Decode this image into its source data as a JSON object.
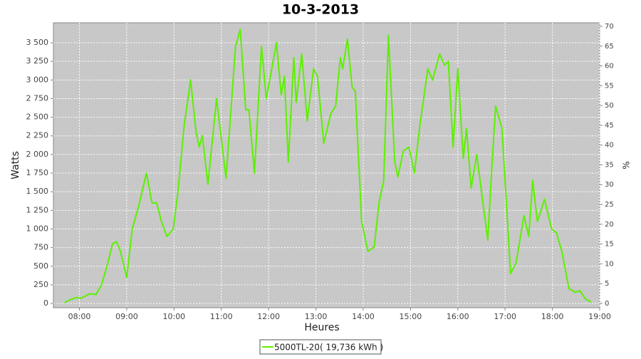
{
  "chart_data": {
    "type": "line",
    "title": "10-3-2013",
    "xlabel": "Heures",
    "ylabel": "Watts",
    "y2label": "%",
    "x": [
      "07:41",
      "07:46",
      "07:56",
      "08:02",
      "08:13",
      "08:21",
      "08:28",
      "08:35",
      "08:42",
      "08:47",
      "08:52",
      "09:00",
      "09:07",
      "09:15",
      "09:25",
      "09:32",
      "09:38",
      "09:44",
      "09:51",
      "09:59",
      "10:05",
      "10:13",
      "10:21",
      "10:28",
      "10:32",
      "10:36",
      "10:43",
      "10:54",
      "11:06",
      "11:18",
      "11:24",
      "11:31",
      "11:35",
      "11:42",
      "11:51",
      "11:57",
      "12:04",
      "12:10",
      "12:16",
      "12:20",
      "12:25",
      "12:32",
      "12:35",
      "12:42",
      "12:49",
      "12:57",
      "13:02",
      "13:10",
      "13:19",
      "13:25",
      "13:31",
      "13:34",
      "13:40",
      "13:46",
      "13:50",
      "13:58",
      "14:06",
      "14:14",
      "14:20",
      "14:26",
      "14:32",
      "14:40",
      "14:44",
      "14:51",
      "14:58",
      "15:05",
      "15:12",
      "15:22",
      "15:28",
      "15:37",
      "15:43",
      "15:48",
      "15:54",
      "16:00",
      "16:07",
      "16:11",
      "16:17",
      "16:24",
      "16:38",
      "16:43",
      "16:48",
      "16:56",
      "17:07",
      "17:14",
      "17:24",
      "17:30",
      "17:35",
      "17:41",
      "17:50",
      "17:59",
      "18:05",
      "18:12",
      "18:21",
      "18:29",
      "18:35",
      "18:42",
      "18:49"
    ],
    "series": [
      {
        "name": "5000TL-20( 19,736 kWh )",
        "color": "#5cf000",
        "values": [
          10,
          40,
          80,
          70,
          130,
          120,
          250,
          500,
          800,
          830,
          700,
          350,
          1000,
          1300,
          1750,
          1350,
          1350,
          1100,
          900,
          1000,
          1500,
          2400,
          3000,
          2300,
          2100,
          2250,
          1600,
          2750,
          1680,
          3450,
          3680,
          2600,
          2600,
          1750,
          3450,
          2750,
          3150,
          3500,
          2800,
          3050,
          1900,
          3300,
          2700,
          3350,
          2450,
          3150,
          3050,
          2150,
          2550,
          2650,
          3300,
          3150,
          3550,
          2900,
          2850,
          1100,
          700,
          760,
          1350,
          1650,
          3600,
          1900,
          1700,
          2050,
          2100,
          1750,
          2400,
          3150,
          3000,
          3350,
          3200,
          3250,
          2100,
          3150,
          1950,
          2350,
          1550,
          2000,
          850,
          1800,
          2650,
          2350,
          400,
          550,
          1180,
          900,
          1650,
          1100,
          1400,
          1000,
          950,
          700,
          200,
          150,
          170,
          60,
          20
        ]
      }
    ],
    "xlim": [
      "07:27",
      "19:00"
    ],
    "xticks": [
      "08:00",
      "09:00",
      "10:00",
      "11:00",
      "12:00",
      "13:00",
      "14:00",
      "15:00",
      "16:00",
      "17:00",
      "18:00",
      "19:00"
    ],
    "ylim": [
      -57,
      3768
    ],
    "yticks": [
      0,
      250,
      500,
      750,
      {
        "value": 1000,
        "label": "1 000"
      },
      {
        "value": 1250,
        "label": "1 250"
      },
      {
        "value": 1500,
        "label": "1 500"
      },
      {
        "value": 1750,
        "label": "1 750"
      },
      {
        "value": 2000,
        "label": "2 000"
      },
      {
        "value": 2250,
        "label": "2 250"
      },
      {
        "value": 2500,
        "label": "2 500"
      },
      {
        "value": 2750,
        "label": "2 750"
      },
      {
        "value": 3000,
        "label": "3 000"
      },
      {
        "value": 3250,
        "label": "3 250"
      },
      {
        "value": 3500,
        "label": "3 500"
      }
    ],
    "y2lim": [
      -1.1,
      70.9
    ],
    "y2ticks": [
      0,
      5,
      10,
      15,
      20,
      25,
      30,
      35,
      40,
      45,
      50,
      55,
      60,
      65,
      70
    ],
    "grid": true
  }
}
